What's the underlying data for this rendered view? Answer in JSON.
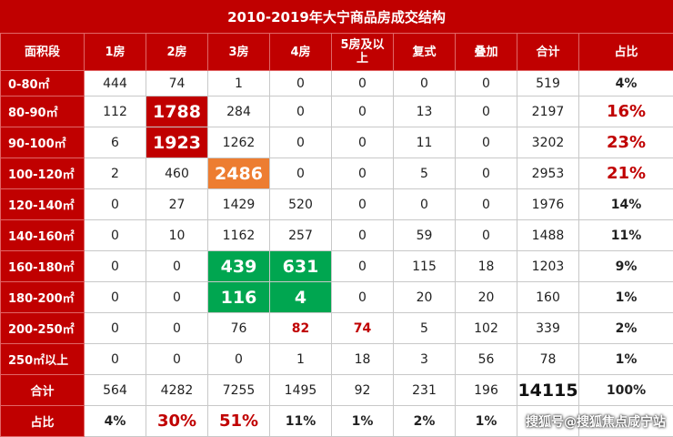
{
  "title": "2010-2019年大宁商品房成交结构",
  "headers": [
    "面积段",
    "1房",
    "2房",
    "3房",
    "4房",
    "5房及以上",
    "复式",
    "叠加",
    "合计",
    "占比"
  ],
  "rows": [
    {
      "label": "0-80㎡",
      "cells": [
        "444",
        "74",
        "1",
        "0",
        "0",
        "0",
        "0",
        "519",
        "4%"
      ]
    },
    {
      "label": "80-90㎡",
      "cells": [
        "112",
        "1788",
        "284",
        "0",
        "0",
        "13",
        "0",
        "2197",
        "16%"
      ]
    },
    {
      "label": "90-100㎡",
      "cells": [
        "6",
        "1923",
        "1262",
        "0",
        "0",
        "11",
        "0",
        "3202",
        "23%"
      ]
    },
    {
      "label": "100-120㎡",
      "cells": [
        "2",
        "460",
        "2486",
        "0",
        "0",
        "5",
        "0",
        "2953",
        "21%"
      ]
    },
    {
      "label": "120-140㎡",
      "cells": [
        "0",
        "27",
        "1429",
        "520",
        "0",
        "0",
        "0",
        "1976",
        "14%"
      ]
    },
    {
      "label": "140-160㎡",
      "cells": [
        "0",
        "10",
        "1162",
        "257",
        "0",
        "59",
        "0",
        "1488",
        "11%"
      ]
    },
    {
      "label": "160-180㎡",
      "cells": [
        "0",
        "0",
        "439",
        "631",
        "0",
        "115",
        "18",
        "1203",
        "9%"
      ]
    },
    {
      "label": "180-200㎡",
      "cells": [
        "0",
        "0",
        "116",
        "4",
        "0",
        "20",
        "20",
        "160",
        "1%"
      ]
    },
    {
      "label": "200-250㎡",
      "cells": [
        "0",
        "0",
        "76",
        "82",
        "74",
        "5",
        "102",
        "339",
        "2%"
      ]
    },
    {
      "label": "250㎡以上",
      "cells": [
        "0",
        "0",
        "0",
        "1",
        "18",
        "3",
        "56",
        "78",
        "1%"
      ]
    }
  ],
  "total_row": {
    "label": "合计",
    "cells": [
      "564",
      "4282",
      "7255",
      "1495",
      "92",
      "231",
      "196",
      "14115",
      "100%"
    ]
  },
  "share_row": {
    "label": "占比",
    "cells": [
      "4%",
      "30%",
      "51%",
      "11%",
      "1%",
      "2%",
      "1%",
      "",
      ""
    ]
  },
  "watermark": "搜狐号@搜狐焦点咸宁站",
  "colors": {
    "header_red": "#c00000",
    "highlight_orange": "#ed7d31",
    "highlight_green": "#00a650"
  }
}
